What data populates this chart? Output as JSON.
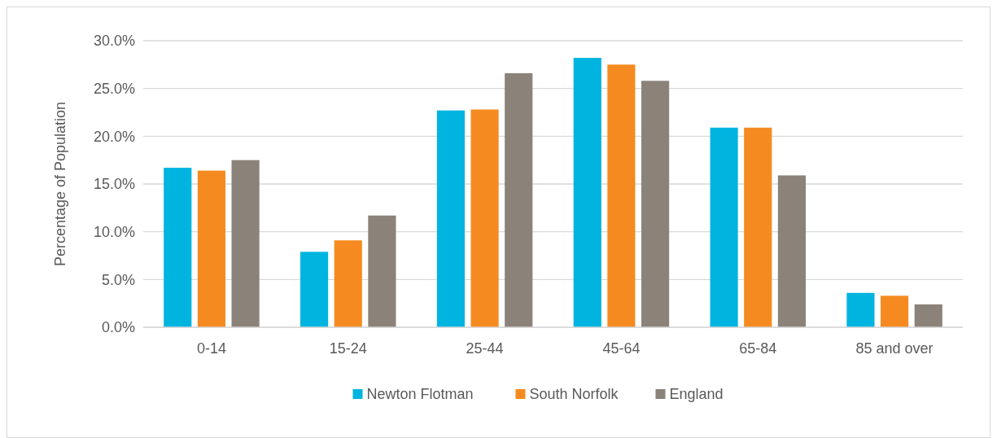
{
  "chart_data": {
    "type": "bar",
    "ylabel": "Percentage of Population",
    "categories": [
      "0-14",
      "15-24",
      "25-44",
      "45-64",
      "65-84",
      "85 and over"
    ],
    "series": [
      {
        "name": "Newton Flotman",
        "color": "#00b4e0",
        "values": [
          16.7,
          7.9,
          22.7,
          28.2,
          20.9,
          3.6
        ]
      },
      {
        "name": "South Norfolk",
        "color": "#f58b20",
        "values": [
          16.4,
          9.1,
          22.8,
          27.5,
          20.9,
          3.3
        ]
      },
      {
        "name": "England",
        "color": "#8b8279",
        "values": [
          17.5,
          11.7,
          26.6,
          25.8,
          15.9,
          2.4
        ]
      }
    ],
    "ylim": [
      0,
      30
    ],
    "yticks": [
      {
        "value": 0,
        "label": "0.0%"
      },
      {
        "value": 5,
        "label": "5.0%"
      },
      {
        "value": 10,
        "label": "10.0%"
      },
      {
        "value": 15,
        "label": "15.0%"
      },
      {
        "value": 20,
        "label": "20.0%"
      },
      {
        "value": 25,
        "label": "25.0%"
      },
      {
        "value": 30,
        "label": "30.0%"
      }
    ],
    "grid": "y",
    "legend": "bottom"
  }
}
